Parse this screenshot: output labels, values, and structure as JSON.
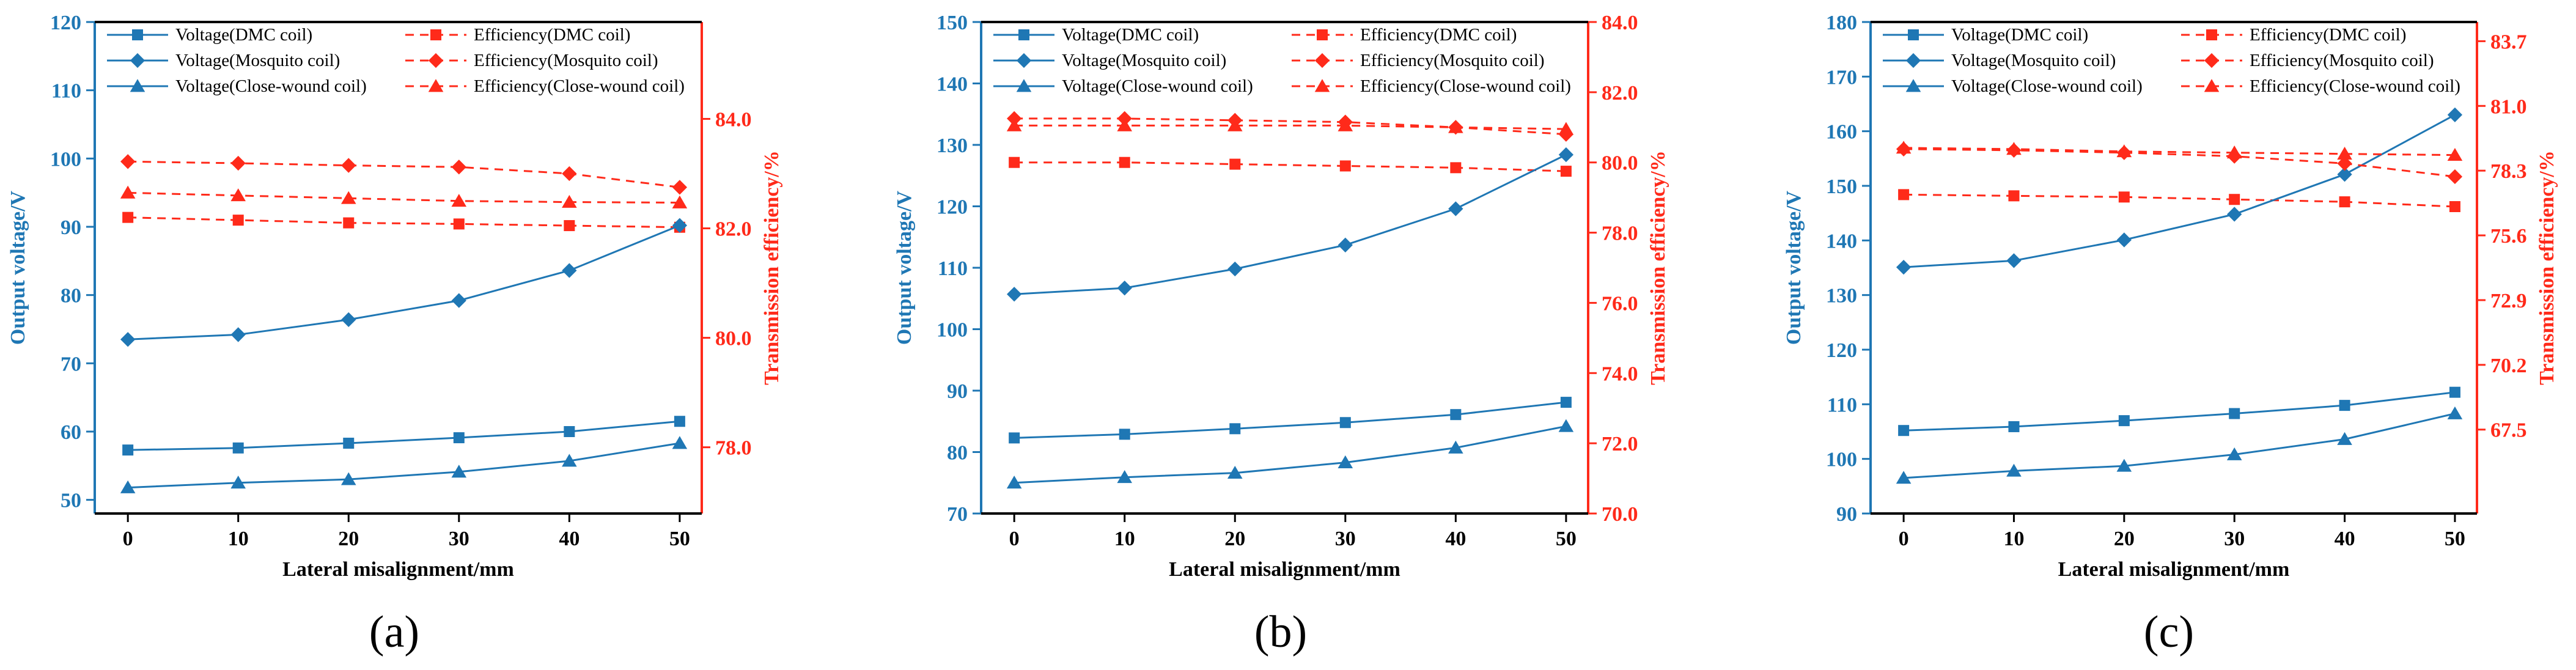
{
  "colors": {
    "voltage": "#1f77b4",
    "efficiency": "#ff2a1a",
    "axis": "#000000",
    "background": "#ffffff"
  },
  "chart_data": [
    {
      "panel_label": "(a)",
      "type": "line",
      "xlabel": "Lateral misalignment/mm",
      "ylabel_left": "Output voltage/V",
      "ylabel_right": "Transmission efficiency/%",
      "x": [
        0,
        10,
        20,
        30,
        40,
        50
      ],
      "xlim": [
        -3,
        52
      ],
      "xticks": [
        0,
        10,
        20,
        30,
        40,
        50
      ],
      "ylim_left": [
        48,
        120
      ],
      "yticks_left": [
        50,
        60,
        70,
        80,
        90,
        100,
        110,
        120
      ],
      "ylim_right": [
        76.79,
        85.77
      ],
      "yticks_right": [
        "78.0",
        "80.0",
        "82.0",
        "84.0"
      ],
      "grid": false,
      "legend_position": "top",
      "series": [
        {
          "name": "Voltage(DMC coil)",
          "axis": "left",
          "style": "solid",
          "marker": "square",
          "values": [
            57.3,
            57.6,
            58.3,
            59.1,
            60.0,
            61.5
          ]
        },
        {
          "name": "Efficiency(DMC coil)",
          "axis": "right",
          "style": "dashed",
          "marker": "square",
          "values": [
            82.2,
            82.15,
            82.1,
            82.08,
            82.05,
            82.02
          ]
        },
        {
          "name": "Voltage(Mosquito coil)",
          "axis": "left",
          "style": "solid",
          "marker": "diamond",
          "values": [
            73.5,
            74.2,
            76.4,
            79.2,
            83.6,
            90.2
          ]
        },
        {
          "name": "Efficiency(Mosquito coil)",
          "axis": "right",
          "style": "dashed",
          "marker": "diamond",
          "values": [
            83.22,
            83.19,
            83.15,
            83.12,
            83.0,
            82.75
          ]
        },
        {
          "name": "Voltage(Close-wound coil)",
          "axis": "left",
          "style": "solid",
          "marker": "triangle",
          "values": [
            51.8,
            52.5,
            53.0,
            54.1,
            55.7,
            58.3
          ]
        },
        {
          "name": "Efficiency(Close-wound coil)",
          "axis": "right",
          "style": "dashed",
          "marker": "triangle",
          "values": [
            82.65,
            82.6,
            82.55,
            82.5,
            82.48,
            82.47
          ]
        }
      ]
    },
    {
      "panel_label": "(b)",
      "type": "line",
      "xlabel": "Lateral misalignment/mm",
      "ylabel_left": "Output voltage/V",
      "ylabel_right": "Transmission efficiency/%",
      "x": [
        0,
        10,
        20,
        30,
        40,
        50
      ],
      "xlim": [
        -3,
        52
      ],
      "xticks": [
        0,
        10,
        20,
        30,
        40,
        50
      ],
      "ylim_left": [
        70,
        150
      ],
      "yticks_left": [
        70,
        80,
        90,
        100,
        110,
        120,
        130,
        140,
        150
      ],
      "ylim_right": [
        70.0,
        84.0
      ],
      "yticks_right": [
        "70.0",
        "72.0",
        "74.0",
        "76.0",
        "78.0",
        "80.0",
        "82.0",
        "84.0"
      ],
      "grid": false,
      "legend_position": "top",
      "series": [
        {
          "name": "Voltage(DMC coil)",
          "axis": "left",
          "style": "solid",
          "marker": "square",
          "values": [
            82.3,
            82.9,
            83.8,
            84.8,
            86.1,
            88.1
          ]
        },
        {
          "name": "Efficiency(DMC coil)",
          "axis": "right",
          "style": "dashed",
          "marker": "square",
          "values": [
            80.0,
            80.0,
            79.95,
            79.9,
            79.85,
            79.75
          ]
        },
        {
          "name": "Voltage(Mosquito coil)",
          "axis": "left",
          "style": "solid",
          "marker": "diamond",
          "values": [
            105.7,
            106.7,
            109.8,
            113.7,
            119.6,
            128.4
          ]
        },
        {
          "name": "Efficiency(Mosquito coil)",
          "axis": "right",
          "style": "dashed",
          "marker": "diamond",
          "values": [
            81.25,
            81.25,
            81.2,
            81.15,
            81.0,
            80.8
          ]
        },
        {
          "name": "Voltage(Close-wound coil)",
          "axis": "left",
          "style": "solid",
          "marker": "triangle",
          "values": [
            75.0,
            75.9,
            76.6,
            78.3,
            80.7,
            84.2
          ]
        },
        {
          "name": "Efficiency(Close-wound coil)",
          "axis": "right",
          "style": "dashed",
          "marker": "triangle",
          "values": [
            81.05,
            81.05,
            81.05,
            81.05,
            81.0,
            80.95
          ]
        }
      ]
    },
    {
      "panel_label": "(c)",
      "type": "line",
      "xlabel": "Lateral misalignment/mm",
      "ylabel_left": "Output voltage/V",
      "ylabel_right": "Transmission efficiency/%",
      "x": [
        0,
        10,
        20,
        30,
        40,
        50
      ],
      "xlim": [
        -3,
        52
      ],
      "xticks": [
        0,
        10,
        20,
        30,
        40,
        50
      ],
      "ylim_left": [
        90,
        180
      ],
      "yticks_left": [
        90,
        100,
        110,
        120,
        130,
        140,
        150,
        160,
        170,
        180
      ],
      "ylim_right": [
        64.0,
        84.5
      ],
      "yticks_right": [
        "67.5",
        "70.2",
        "72.9",
        "75.6",
        "78.3",
        "81.0",
        "83.7"
      ],
      "grid": false,
      "legend_position": "top",
      "series": [
        {
          "name": "Voltage(DMC coil)",
          "axis": "left",
          "style": "solid",
          "marker": "square",
          "values": [
            105.2,
            105.9,
            107.0,
            108.3,
            109.8,
            112.2
          ]
        },
        {
          "name": "Efficiency(DMC coil)",
          "axis": "right",
          "style": "dashed",
          "marker": "square",
          "values": [
            77.3,
            77.25,
            77.2,
            77.1,
            77.0,
            76.8
          ]
        },
        {
          "name": "Voltage(Mosquito coil)",
          "axis": "left",
          "style": "solid",
          "marker": "diamond",
          "values": [
            135.1,
            136.3,
            140.1,
            144.8,
            152.1,
            163.0
          ]
        },
        {
          "name": "Efficiency(Mosquito coil)",
          "axis": "right",
          "style": "dashed",
          "marker": "diamond",
          "values": [
            79.2,
            79.15,
            79.05,
            78.9,
            78.6,
            78.05
          ]
        },
        {
          "name": "Voltage(Close-wound coil)",
          "axis": "left",
          "style": "solid",
          "marker": "triangle",
          "values": [
            96.5,
            97.8,
            98.7,
            100.8,
            103.6,
            108.3
          ]
        },
        {
          "name": "Efficiency(Close-wound coil)",
          "axis": "right",
          "style": "dashed",
          "marker": "triangle",
          "values": [
            79.25,
            79.2,
            79.1,
            79.05,
            79.0,
            78.95
          ]
        }
      ]
    }
  ]
}
